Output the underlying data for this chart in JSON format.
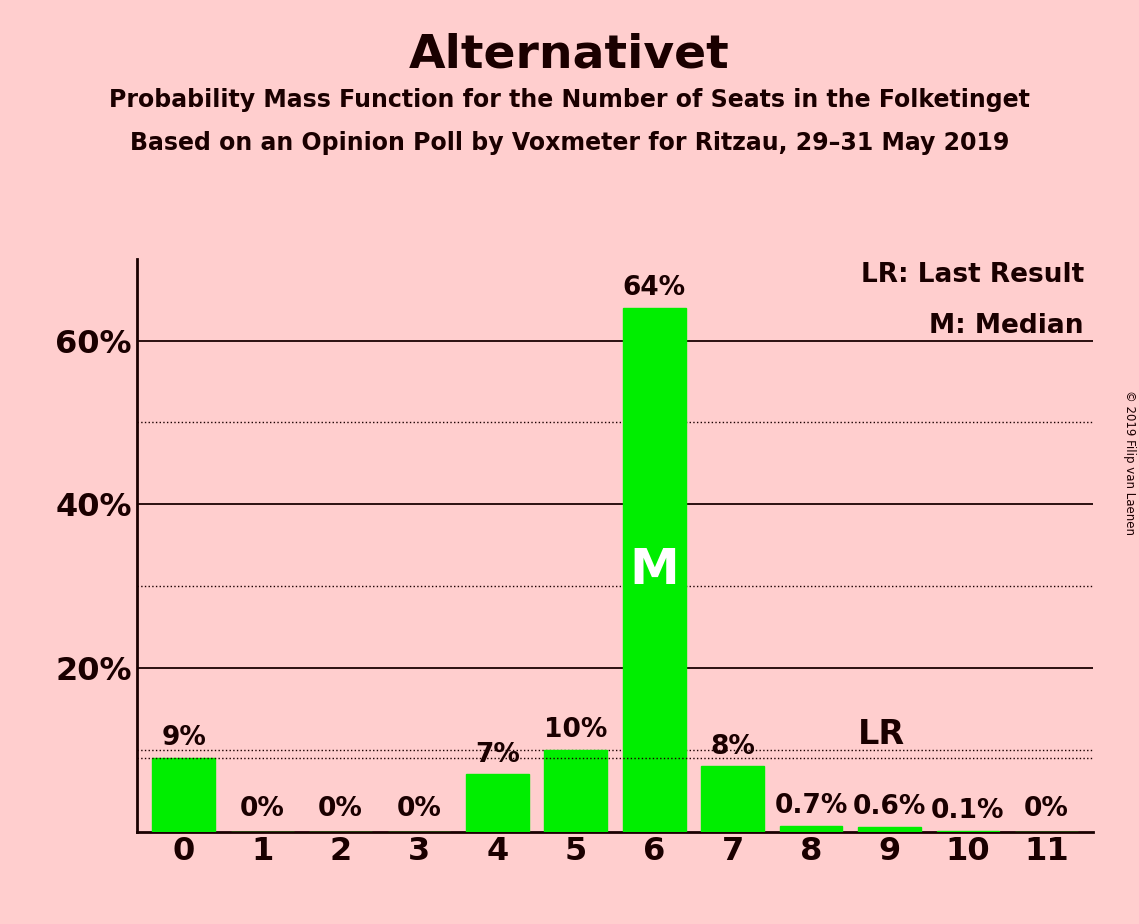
{
  "title": "Alternativet",
  "subtitle1": "Probability Mass Function for the Number of Seats in the Folketinget",
  "subtitle2": "Based on an Opinion Poll by Voxmeter for Ritzau, 29–31 May 2019",
  "copyright": "© 2019 Filip van Laenen",
  "categories": [
    0,
    1,
    2,
    3,
    4,
    5,
    6,
    7,
    8,
    9,
    10,
    11
  ],
  "values": [
    9.0,
    0.0,
    0.0,
    0.0,
    7.0,
    10.0,
    64.0,
    8.0,
    0.7,
    0.6,
    0.1,
    0.0
  ],
  "bar_color": "#00EE00",
  "background_color": "#FFCECE",
  "title_color": "#1a0000",
  "median_label": "M",
  "median_bar": 6,
  "lr_value": 9.0,
  "lr_label": "LR",
  "legend_text1": "LR: Last Result",
  "legend_text2": "M: Median",
  "solid_gridlines": [
    20,
    40,
    60
  ],
  "dotted_gridlines": [
    10,
    30,
    50
  ],
  "ylim": [
    0,
    70
  ],
  "xlim": [
    -0.6,
    11.6
  ]
}
